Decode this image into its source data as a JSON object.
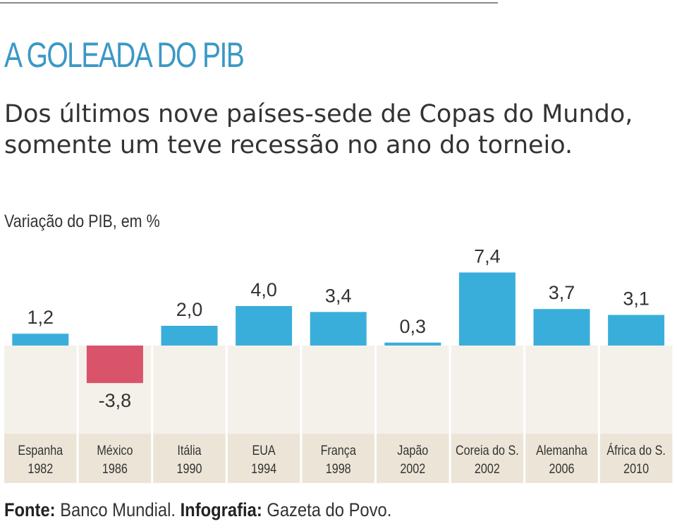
{
  "title": "A GOLEADA DO PIB",
  "subtitle": "Dos últimos nove países-sede de Copas do Mundo, somente um teve recessão no ano do torneio.",
  "colors": {
    "positive": "#3aaedb",
    "negative": "#d9536b",
    "panel": "#f4f1eb",
    "label_panel": "#ece5d7",
    "title": "#3b98c6"
  },
  "chart_data": {
    "type": "bar",
    "ylabel": "Variação do PIB, em %",
    "categories": [
      {
        "country": "Espanha",
        "year": "1982"
      },
      {
        "country": "México",
        "year": "1986"
      },
      {
        "country": "Itália",
        "year": "1990"
      },
      {
        "country": "EUA",
        "year": "1994"
      },
      {
        "country": "França",
        "year": "1998"
      },
      {
        "country": "Japão",
        "year": "2002"
      },
      {
        "country": "Coreia do S.",
        "year": "2002"
      },
      {
        "country": "Alemanha",
        "year": "2006"
      },
      {
        "country": "África do S.",
        "year": "2010"
      }
    ],
    "values": [
      1.2,
      -3.8,
      2.0,
      4.0,
      3.4,
      0.3,
      7.4,
      3.7,
      3.1
    ],
    "value_labels": [
      "1,2",
      "-3,8",
      "2,0",
      "4,0",
      "3,4",
      "0,3",
      "7,4",
      "3,7",
      "3,1"
    ],
    "ylim": [
      -3.8,
      7.4
    ],
    "grid": false
  },
  "footer": {
    "source_label": "Fonte:",
    "source_value": " Banco Mundial. ",
    "credit_label": "Infografia:",
    "credit_value": " Gazeta do Povo."
  }
}
